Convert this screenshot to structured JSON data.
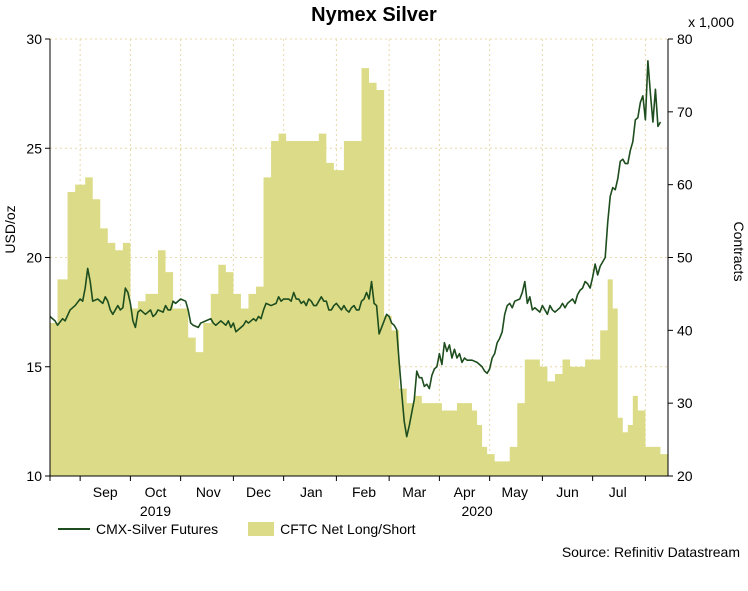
{
  "chart_data": {
    "type": "line+area",
    "title": "Nymex Silver",
    "ylabel_left": "USD/oz",
    "ylabel_right": "Contracts",
    "right_unit": "x 1,000",
    "source": "Source: Refinitiv Datastream",
    "ylim_left": [
      10,
      30
    ],
    "ylim_right": [
      20,
      80
    ],
    "yticks_left": [
      "10",
      "15",
      "20",
      "25",
      "30"
    ],
    "yticks_right": [
      "20",
      "30",
      "40",
      "50",
      "60",
      "70",
      "80"
    ],
    "x_range_days": [
      0,
      246
    ],
    "months": [
      {
        "label": "Sep",
        "day": 22
      },
      {
        "label": "Oct",
        "day": 42
      },
      {
        "label": "Nov",
        "day": 63
      },
      {
        "label": "Dec",
        "day": 83
      },
      {
        "label": "Jan",
        "day": 104
      },
      {
        "label": "Feb",
        "day": 125
      },
      {
        "label": "Mar",
        "day": 145
      },
      {
        "label": "Apr",
        "day": 165
      },
      {
        "label": "May",
        "day": 185
      },
      {
        "label": "Jun",
        "day": 206
      },
      {
        "label": "Jul",
        "day": 226
      }
    ],
    "month_boundaries": [
      0,
      12,
      32,
      52,
      73,
      93,
      114,
      135,
      155,
      175,
      196,
      216,
      237
    ],
    "years": [
      {
        "label": "2019",
        "day": 42
      },
      {
        "label": "2020",
        "day": 170
      }
    ],
    "colors": {
      "line": "#1e4d1e",
      "area": "#dcdc88",
      "grid": "#e8d8a8",
      "axis": "#000000"
    },
    "series": [
      {
        "name": "CMX-Silver Futures",
        "type": "line",
        "axis": "left",
        "points": [
          [
            0,
            17.3
          ],
          [
            2,
            17.1
          ],
          [
            3,
            16.9
          ],
          [
            5,
            17.2
          ],
          [
            6,
            17.1
          ],
          [
            8,
            17.6
          ],
          [
            10,
            17.8
          ],
          [
            12,
            18.1
          ],
          [
            13,
            18.0
          ],
          [
            14,
            18.6
          ],
          [
            15,
            19.5
          ],
          [
            16,
            18.9
          ],
          [
            17,
            18.0
          ],
          [
            19,
            18.1
          ],
          [
            21,
            17.9
          ],
          [
            22,
            18.2
          ],
          [
            23,
            18.0
          ],
          [
            24,
            17.6
          ],
          [
            25,
            17.4
          ],
          [
            27,
            17.8
          ],
          [
            28,
            17.6
          ],
          [
            29,
            17.7
          ],
          [
            30,
            18.6
          ],
          [
            31,
            18.4
          ],
          [
            32,
            17.9
          ],
          [
            33,
            17.1
          ],
          [
            34,
            16.8
          ],
          [
            35,
            17.5
          ],
          [
            36,
            17.6
          ],
          [
            38,
            17.4
          ],
          [
            40,
            17.6
          ],
          [
            41,
            17.3
          ],
          [
            42,
            17.4
          ],
          [
            43,
            17.6
          ],
          [
            45,
            17.5
          ],
          [
            46,
            17.8
          ],
          [
            47,
            17.6
          ],
          [
            48,
            17.6
          ],
          [
            49,
            18.0
          ],
          [
            50,
            17.9
          ],
          [
            52,
            18.1
          ],
          [
            54,
            18.0
          ],
          [
            55,
            17.6
          ],
          [
            56,
            17.0
          ],
          [
            57,
            16.9
          ],
          [
            59,
            16.8
          ],
          [
            60,
            17.0
          ],
          [
            62,
            17.1
          ],
          [
            64,
            17.2
          ],
          [
            65,
            17.0
          ],
          [
            66,
            16.9
          ],
          [
            67,
            17.0
          ],
          [
            68,
            17.1
          ],
          [
            69,
            17.0
          ],
          [
            70,
            16.9
          ],
          [
            71,
            17.1
          ],
          [
            72,
            16.8
          ],
          [
            73,
            17.0
          ],
          [
            74,
            16.6
          ],
          [
            75,
            16.7
          ],
          [
            77,
            16.9
          ],
          [
            78,
            17.1
          ],
          [
            79,
            17.0
          ],
          [
            81,
            17.2
          ],
          [
            82,
            17.1
          ],
          [
            83,
            17.3
          ],
          [
            84,
            17.2
          ],
          [
            85,
            17.6
          ],
          [
            86,
            17.9
          ],
          [
            88,
            17.8
          ],
          [
            90,
            17.9
          ],
          [
            91,
            18.2
          ],
          [
            92,
            18.0
          ],
          [
            93,
            18.1
          ],
          [
            95,
            18.1
          ],
          [
            96,
            18.0
          ],
          [
            97,
            18.4
          ],
          [
            98,
            18.1
          ],
          [
            99,
            18.1
          ],
          [
            100,
            17.9
          ],
          [
            101,
            18.0
          ],
          [
            102,
            17.8
          ],
          [
            103,
            18.1
          ],
          [
            104,
            18.0
          ],
          [
            105,
            17.8
          ],
          [
            106,
            17.8
          ],
          [
            107,
            18.0
          ],
          [
            108,
            18.2
          ],
          [
            109,
            18.0
          ],
          [
            110,
            18.0
          ],
          [
            111,
            17.6
          ],
          [
            112,
            17.6
          ],
          [
            113,
            17.8
          ],
          [
            114,
            17.9
          ],
          [
            116,
            17.6
          ],
          [
            117,
            17.8
          ],
          [
            118,
            17.6
          ],
          [
            119,
            17.5
          ],
          [
            120,
            17.7
          ],
          [
            121,
            17.8
          ],
          [
            122,
            17.6
          ],
          [
            123,
            17.6
          ],
          [
            124,
            18.0
          ],
          [
            125,
            18.1
          ],
          [
            126,
            18.4
          ],
          [
            127,
            18.1
          ],
          [
            128,
            18.9
          ],
          [
            129,
            17.9
          ],
          [
            130,
            17.8
          ],
          [
            131,
            16.5
          ],
          [
            132,
            16.8
          ],
          [
            133,
            17.1
          ],
          [
            134,
            17.4
          ],
          [
            135,
            17.3
          ],
          [
            136,
            17.0
          ],
          [
            137,
            16.9
          ],
          [
            138,
            16.7
          ],
          [
            139,
            15.2
          ],
          [
            140,
            13.8
          ],
          [
            141,
            12.5
          ],
          [
            142,
            11.8
          ],
          [
            143,
            12.3
          ],
          [
            145,
            13.5
          ],
          [
            146,
            14.8
          ],
          [
            147,
            14.5
          ],
          [
            148,
            14.5
          ],
          [
            149,
            14.1
          ],
          [
            150,
            14.2
          ],
          [
            151,
            14.0
          ],
          [
            152,
            14.6
          ],
          [
            153,
            14.9
          ],
          [
            154,
            15.0
          ],
          [
            155,
            15.6
          ],
          [
            156,
            15.1
          ],
          [
            157,
            16.1
          ],
          [
            158,
            15.7
          ],
          [
            159,
            16.0
          ],
          [
            160,
            15.4
          ],
          [
            161,
            15.8
          ],
          [
            162,
            15.4
          ],
          [
            163,
            15.6
          ],
          [
            164,
            15.2
          ],
          [
            165,
            15.4
          ],
          [
            166,
            15.3
          ],
          [
            168,
            15.3
          ],
          [
            170,
            15.2
          ],
          [
            172,
            15.0
          ],
          [
            173,
            14.8
          ],
          [
            174,
            14.7
          ],
          [
            175,
            14.9
          ],
          [
            176,
            15.4
          ],
          [
            177,
            15.6
          ],
          [
            178,
            16.1
          ],
          [
            179,
            16.3
          ],
          [
            180,
            16.6
          ],
          [
            181,
            17.4
          ],
          [
            182,
            17.8
          ],
          [
            183,
            17.9
          ],
          [
            184,
            17.7
          ],
          [
            185,
            18.0
          ],
          [
            187,
            18.1
          ],
          [
            188,
            18.4
          ],
          [
            189,
            18.9
          ],
          [
            190,
            17.9
          ],
          [
            191,
            18.2
          ],
          [
            192,
            17.6
          ],
          [
            193,
            17.7
          ],
          [
            195,
            17.5
          ],
          [
            196,
            17.8
          ],
          [
            197,
            17.6
          ],
          [
            198,
            17.4
          ],
          [
            199,
            17.8
          ],
          [
            200,
            17.6
          ],
          [
            201,
            17.5
          ],
          [
            202,
            17.6
          ],
          [
            203,
            17.7
          ],
          [
            204,
            17.9
          ],
          [
            205,
            17.7
          ],
          [
            206,
            17.9
          ],
          [
            207,
            18.0
          ],
          [
            208,
            18.1
          ],
          [
            209,
            17.9
          ],
          [
            210,
            18.3
          ],
          [
            211,
            18.5
          ],
          [
            212,
            18.6
          ],
          [
            213,
            18.9
          ],
          [
            214,
            18.8
          ],
          [
            215,
            18.6
          ],
          [
            216,
            19.1
          ],
          [
            217,
            19.7
          ],
          [
            218,
            19.2
          ],
          [
            219,
            19.6
          ],
          [
            220,
            19.8
          ],
          [
            221,
            20.0
          ],
          [
            222,
            21.6
          ],
          [
            223,
            22.8
          ],
          [
            224,
            23.2
          ],
          [
            225,
            23.1
          ],
          [
            226,
            23.6
          ],
          [
            227,
            24.4
          ],
          [
            228,
            24.5
          ],
          [
            229,
            24.3
          ],
          [
            230,
            24.3
          ],
          [
            231,
            24.9
          ],
          [
            232,
            25.3
          ],
          [
            233,
            26.3
          ],
          [
            234,
            26.4
          ],
          [
            235,
            27.1
          ],
          [
            236,
            27.4
          ],
          [
            237,
            26.3
          ],
          [
            238,
            29.0
          ],
          [
            239,
            27.5
          ],
          [
            240,
            26.2
          ],
          [
            241,
            27.7
          ],
          [
            242,
            26.0
          ],
          [
            243,
            26.2
          ]
        ]
      },
      {
        "name": "CFTC Net Long/Short",
        "type": "area",
        "axis": "right",
        "points": [
          [
            0,
            41
          ],
          [
            3,
            47
          ],
          [
            7,
            59
          ],
          [
            10,
            60
          ],
          [
            14,
            61
          ],
          [
            17,
            58
          ],
          [
            20,
            54
          ],
          [
            23,
            52
          ],
          [
            26,
            51
          ],
          [
            29,
            52
          ],
          [
            32,
            43
          ],
          [
            35,
            44
          ],
          [
            38,
            45
          ],
          [
            41,
            45
          ],
          [
            43,
            51
          ],
          [
            46,
            48
          ],
          [
            49,
            43
          ],
          [
            52,
            43
          ],
          [
            55,
            39
          ],
          [
            58,
            37
          ],
          [
            61,
            41
          ],
          [
            64,
            45
          ],
          [
            67,
            49
          ],
          [
            70,
            48
          ],
          [
            73,
            45
          ],
          [
            76,
            43
          ],
          [
            79,
            45
          ],
          [
            82,
            46
          ],
          [
            85,
            61
          ],
          [
            88,
            66
          ],
          [
            91,
            67
          ],
          [
            94,
            66
          ],
          [
            98,
            66
          ],
          [
            101,
            66
          ],
          [
            104,
            66
          ],
          [
            107,
            67
          ],
          [
            110,
            63
          ],
          [
            113,
            62
          ],
          [
            117,
            66
          ],
          [
            120,
            66
          ],
          [
            124,
            76
          ],
          [
            127,
            74
          ],
          [
            130,
            73
          ],
          [
            133,
            42
          ],
          [
            136,
            40
          ],
          [
            139,
            32
          ],
          [
            142,
            30
          ],
          [
            145,
            31
          ],
          [
            148,
            30
          ],
          [
            150,
            30
          ],
          [
            153,
            30
          ],
          [
            156,
            29
          ],
          [
            159,
            29
          ],
          [
            162,
            30
          ],
          [
            165,
            30
          ],
          [
            168,
            29
          ],
          [
            170,
            27
          ],
          [
            172,
            24
          ],
          [
            174,
            23
          ],
          [
            177,
            22
          ],
          [
            180,
            22
          ],
          [
            183,
            24
          ],
          [
            186,
            30
          ],
          [
            189,
            36
          ],
          [
            192,
            36
          ],
          [
            195,
            35
          ],
          [
            198,
            33
          ],
          [
            201,
            34
          ],
          [
            204,
            36
          ],
          [
            207,
            35
          ],
          [
            210,
            35
          ],
          [
            213,
            36
          ],
          [
            216,
            36
          ],
          [
            219,
            40
          ],
          [
            222,
            47
          ],
          [
            224,
            43
          ],
          [
            226,
            28
          ],
          [
            228,
            26
          ],
          [
            230,
            27
          ],
          [
            232,
            31
          ],
          [
            234,
            29
          ],
          [
            237,
            24
          ],
          [
            240,
            24
          ],
          [
            243,
            23
          ]
        ]
      }
    ]
  }
}
